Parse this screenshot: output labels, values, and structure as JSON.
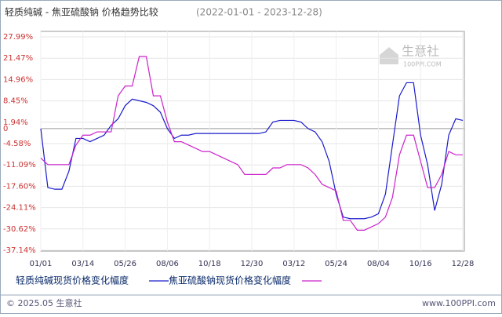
{
  "chart_data": {
    "type": "line",
    "title": "轻质纯碱 - 焦亚硫酸钠 价格趋势比较",
    "subtitle": "(2022-01-01 - 2023-12-28)",
    "categories": [
      "01/01",
      null,
      null,
      null,
      null,
      null,
      "03/14",
      null,
      null,
      null,
      null,
      null,
      "05/26",
      null,
      null,
      null,
      null,
      null,
      "08/06",
      null,
      null,
      null,
      null,
      null,
      "10/18",
      null,
      null,
      null,
      null,
      null,
      "12/30",
      null,
      null,
      null,
      null,
      null,
      "03/12",
      null,
      null,
      null,
      null,
      null,
      "05/24",
      null,
      null,
      null,
      null,
      null,
      "08/04",
      null,
      null,
      null,
      null,
      null,
      "10/16",
      null,
      null,
      null,
      null,
      null,
      "12/28"
    ],
    "series": [
      {
        "name": "轻质纯碱现货价格变化幅度",
        "color": "#1a1acc",
        "values": [
          0,
          -18,
          -18.5,
          -18.5,
          -13,
          -3,
          -3,
          -4,
          -3,
          -2,
          1,
          3,
          7,
          9,
          8.5,
          8,
          7,
          5,
          0,
          -3,
          -2,
          -2,
          -1.5,
          -1.5,
          -1.5,
          -1.5,
          -1.5,
          -1.5,
          -1.5,
          -1.5,
          -1.5,
          -1.5,
          -1,
          2,
          2.5,
          2.5,
          2.5,
          2,
          0,
          -1,
          -4,
          -10,
          -20,
          -27,
          -27.5,
          -27.5,
          -27.5,
          -27,
          -26,
          -20,
          -5,
          10,
          14,
          14,
          -2,
          -11,
          -25,
          -17,
          -2,
          3,
          2.5
        ]
      },
      {
        "name": "焦亚硫酸钠现货价格变化幅度",
        "color": "#cc22cc",
        "values": [
          -9,
          -11,
          -11,
          -11,
          -11,
          -5,
          -2,
          -2,
          -1,
          -1,
          -1,
          10,
          13,
          13,
          22,
          22,
          10,
          10,
          2,
          -4,
          -4,
          -5,
          -6,
          -7,
          -7,
          -8,
          -9,
          -10,
          -11,
          -14,
          -14,
          -14,
          -14,
          -12,
          -12,
          -11,
          -11,
          -11,
          -12,
          -14,
          -17,
          -18,
          -19,
          -28,
          -28,
          -31,
          -31,
          -30,
          -29,
          -27,
          -21,
          -8,
          -2,
          -2,
          -10,
          -18,
          -18,
          -14,
          -7,
          -8,
          -8
        ]
      }
    ],
    "ylim": [
      -37.14,
      27.99
    ],
    "yticks": [
      {
        "value": 27.99,
        "label": "27.99%"
      },
      {
        "value": 21.47,
        "label": "21.47%"
      },
      {
        "value": 14.96,
        "label": "14.96%"
      },
      {
        "value": 8.45,
        "label": "8.45%"
      },
      {
        "value": 1.94,
        "label": "1.94%"
      },
      0,
      {
        "value": -4.58,
        "label": "-4.58%"
      },
      {
        "value": -11.09,
        "label": "-11.09%"
      },
      {
        "value": -17.6,
        "label": "-17.60%"
      },
      {
        "value": -24.11,
        "label": "-24.11%"
      },
      {
        "value": -30.62,
        "label": "-30.62%"
      },
      {
        "value": -37.14,
        "label": "-37.14%"
      }
    ],
    "grid": true,
    "watermark": {
      "name": "生意社",
      "site": "100PPI.COM"
    },
    "footer": {
      "copyright": "© 2025.05 生意社",
      "url": "www.100PPI.com"
    }
  }
}
